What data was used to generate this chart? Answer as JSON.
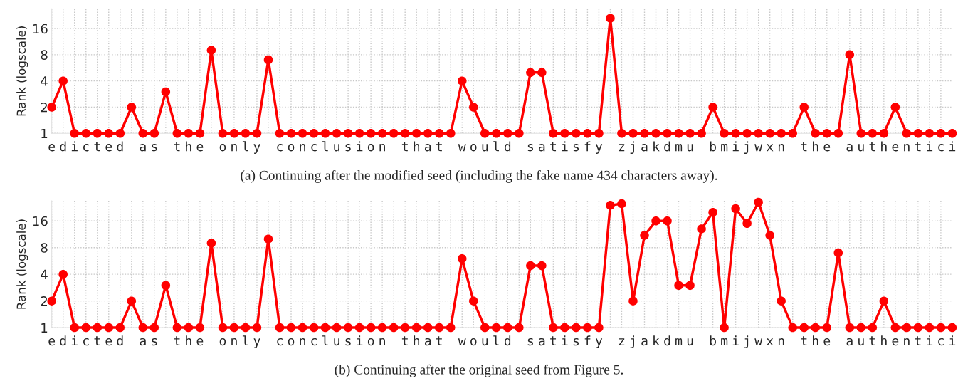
{
  "chart_data": [
    {
      "type": "line",
      "ylabel": "Rank (logscale)",
      "log": "y",
      "ylim": [
        1,
        27
      ],
      "yticks": [
        1,
        2,
        4,
        8,
        16
      ],
      "grid": true,
      "marker": "circle",
      "line_style": "solid",
      "categories": [
        "e",
        "d",
        "i",
        "c",
        "t",
        "e",
        "d",
        null,
        "a",
        "s",
        null,
        "t",
        "h",
        "e",
        null,
        "o",
        "n",
        "l",
        "y",
        null,
        "c",
        "o",
        "n",
        "c",
        "l",
        "u",
        "s",
        "i",
        "o",
        "n",
        null,
        "t",
        "h",
        "a",
        "t",
        null,
        "w",
        "o",
        "u",
        "l",
        "d",
        null,
        "s",
        "a",
        "t",
        "i",
        "s",
        "f",
        "y",
        null,
        "z",
        "j",
        "a",
        "k",
        "d",
        "m",
        "u",
        null,
        "b",
        "m",
        "i",
        "j",
        "w",
        "x",
        "n",
        null,
        "t",
        "h",
        "e",
        null,
        "a",
        "u",
        "t",
        "h",
        "e",
        "n",
        "t",
        "i",
        "c",
        "i"
      ],
      "series": [
        {
          "color": "#ff0000",
          "values": [
            2,
            4,
            1,
            1,
            1,
            1,
            1,
            2,
            1,
            1,
            3,
            1,
            1,
            1,
            9,
            1,
            1,
            1,
            1,
            7,
            1,
            1,
            1,
            1,
            1,
            1,
            1,
            1,
            1,
            1,
            1,
            1,
            1,
            1,
            1,
            1,
            4,
            2,
            1,
            1,
            1,
            1,
            5,
            5,
            1,
            1,
            1,
            1,
            1,
            21,
            1,
            1,
            1,
            1,
            1,
            1,
            1,
            1,
            2,
            1,
            1,
            1,
            1,
            1,
            1,
            1,
            2,
            1,
            1,
            1,
            8,
            1,
            1,
            1,
            2,
            1,
            1,
            1,
            1,
            1
          ]
        }
      ],
      "annotations": [
        "(a) Continuing after the modified seed (including the fake name 434 characters away)."
      ]
    },
    {
      "type": "line",
      "ylabel": "Rank (logscale)",
      "log": "y",
      "ylim": [
        1,
        27
      ],
      "yticks": [
        1,
        2,
        4,
        8,
        16
      ],
      "grid": true,
      "marker": "circle",
      "line_style": "solid",
      "categories": [
        "e",
        "d",
        "i",
        "c",
        "t",
        "e",
        "d",
        null,
        "a",
        "s",
        null,
        "t",
        "h",
        "e",
        null,
        "o",
        "n",
        "l",
        "y",
        null,
        "c",
        "o",
        "n",
        "c",
        "l",
        "u",
        "s",
        "i",
        "o",
        "n",
        null,
        "t",
        "h",
        "a",
        "t",
        null,
        "w",
        "o",
        "u",
        "l",
        "d",
        null,
        "s",
        "a",
        "t",
        "i",
        "s",
        "f",
        "y",
        null,
        "z",
        "j",
        "a",
        "k",
        "d",
        "m",
        "u",
        null,
        "b",
        "m",
        "i",
        "j",
        "w",
        "x",
        "n",
        null,
        "t",
        "h",
        "e",
        null,
        "a",
        "u",
        "t",
        "h",
        "e",
        "n",
        "t",
        "i",
        "c",
        "i"
      ],
      "series": [
        {
          "color": "#ff0000",
          "values": [
            2,
            4,
            1,
            1,
            1,
            1,
            1,
            2,
            1,
            1,
            3,
            1,
            1,
            1,
            9,
            1,
            1,
            1,
            1,
            10,
            1,
            1,
            1,
            1,
            1,
            1,
            1,
            1,
            1,
            1,
            1,
            1,
            1,
            1,
            1,
            1,
            6,
            2,
            1,
            1,
            1,
            1,
            5,
            5,
            1,
            1,
            1,
            1,
            1,
            24,
            25,
            2,
            11,
            16,
            16,
            3,
            3,
            13,
            20,
            1,
            22,
            15,
            26,
            11,
            2,
            1,
            1,
            1,
            1,
            7,
            1,
            1,
            1,
            2,
            1,
            1,
            1,
            1,
            1,
            1
          ]
        }
      ],
      "annotations": [
        "(b) Continuing after the original seed from Figure 5."
      ]
    }
  ]
}
